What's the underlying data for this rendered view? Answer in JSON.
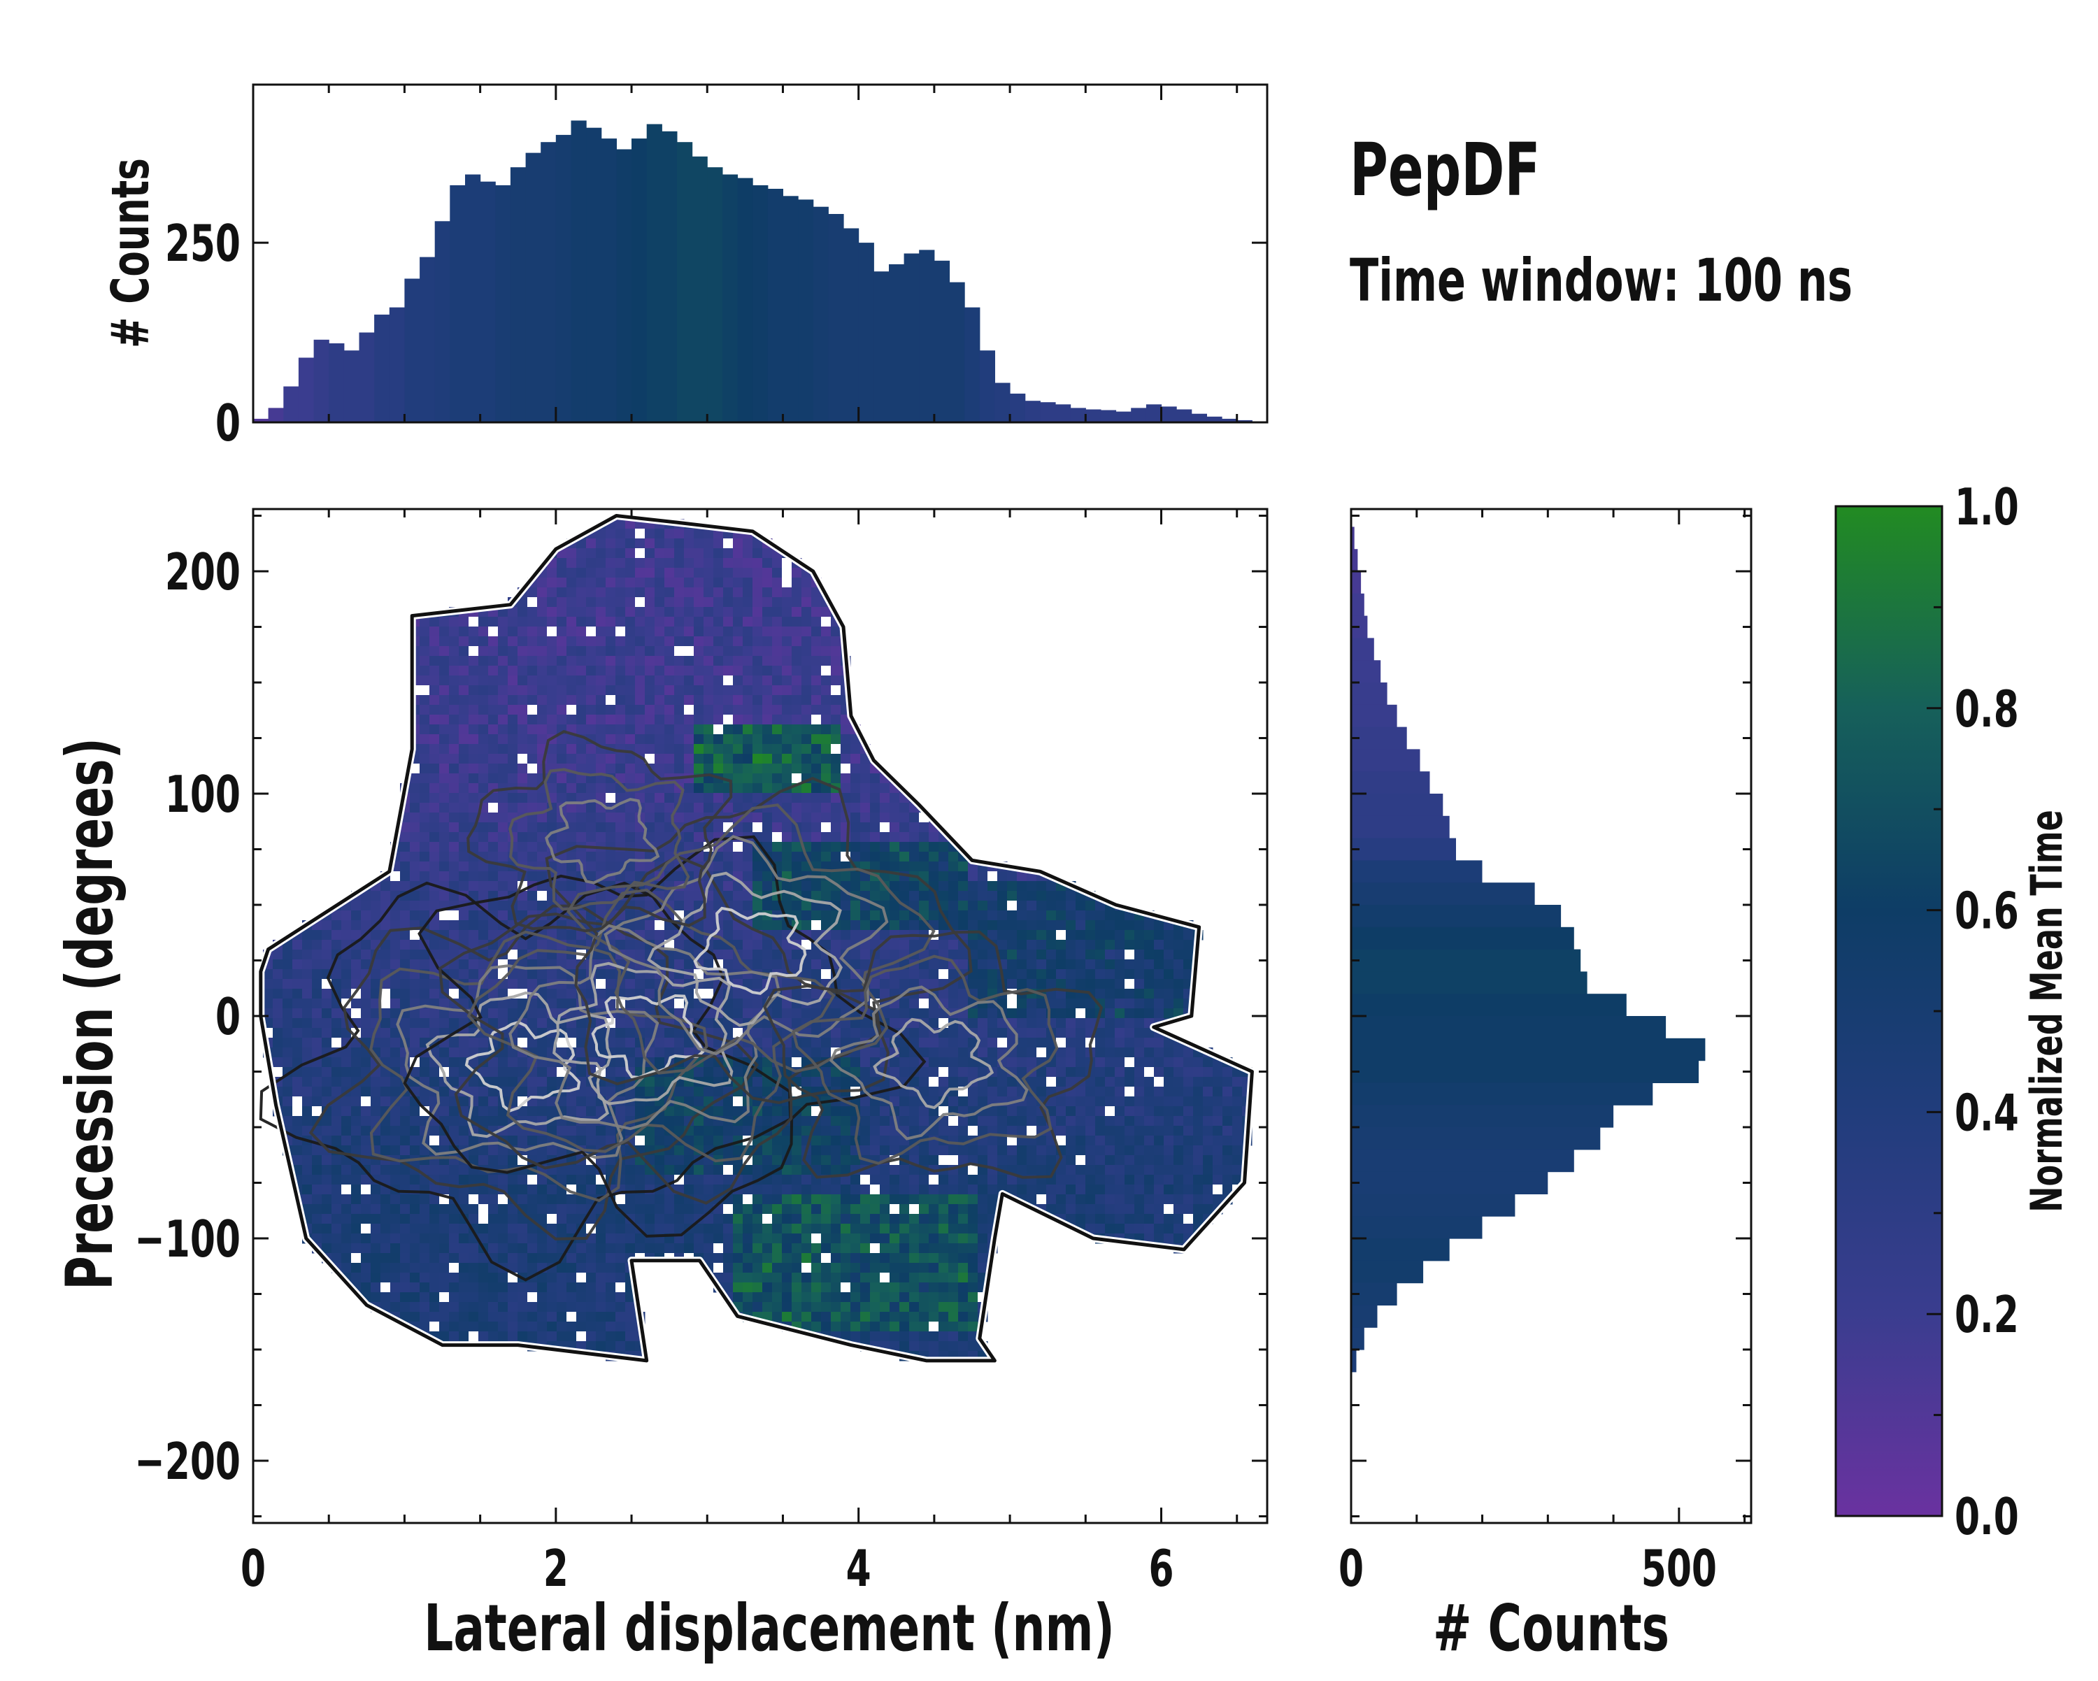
{
  "figure": {
    "title": "PepDF",
    "subtitle": "Time window: 100 ns"
  },
  "chart_data": [
    {
      "id": "top-histogram",
      "type": "bar",
      "xlabel": "",
      "ylabel": "# Counts",
      "xlim": [
        0,
        6.7
      ],
      "ylim": [
        0,
        470
      ],
      "yticks": [
        0,
        250
      ],
      "x": [
        0.05,
        0.15,
        0.25,
        0.35,
        0.45,
        0.55,
        0.65,
        0.75,
        0.85,
        0.95,
        1.05,
        1.15,
        1.25,
        1.35,
        1.45,
        1.55,
        1.65,
        1.75,
        1.85,
        1.95,
        2.05,
        2.15,
        2.25,
        2.35,
        2.45,
        2.55,
        2.65,
        2.75,
        2.85,
        2.95,
        3.05,
        3.15,
        3.25,
        3.35,
        3.45,
        3.55,
        3.65,
        3.75,
        3.85,
        3.95,
        4.05,
        4.15,
        4.25,
        4.35,
        4.45,
        4.55,
        4.65,
        4.75,
        4.85,
        4.95,
        5.05,
        5.15,
        5.25,
        5.35,
        5.45,
        5.55,
        5.65,
        5.75,
        5.85,
        5.95,
        6.05,
        6.15,
        6.25,
        6.35,
        6.45,
        6.55
      ],
      "values": [
        5,
        20,
        50,
        90,
        115,
        110,
        100,
        125,
        150,
        160,
        200,
        230,
        280,
        330,
        345,
        335,
        330,
        355,
        375,
        390,
        400,
        420,
        410,
        395,
        380,
        395,
        415,
        405,
        390,
        370,
        355,
        345,
        340,
        330,
        325,
        315,
        310,
        300,
        290,
        270,
        250,
        210,
        220,
        235,
        240,
        225,
        195,
        160,
        100,
        55,
        40,
        30,
        28,
        25,
        20,
        18,
        17,
        15,
        20,
        25,
        22,
        18,
        12,
        8,
        5,
        3
      ],
      "color_values": [
        0.1,
        0.15,
        0.2,
        0.2,
        0.25,
        0.3,
        0.3,
        0.3,
        0.35,
        0.35,
        0.4,
        0.4,
        0.42,
        0.45,
        0.45,
        0.45,
        0.48,
        0.5,
        0.5,
        0.5,
        0.52,
        0.55,
        0.55,
        0.55,
        0.58,
        0.6,
        0.62,
        0.62,
        0.65,
        0.65,
        0.65,
        0.62,
        0.6,
        0.58,
        0.55,
        0.55,
        0.55,
        0.52,
        0.5,
        0.5,
        0.5,
        0.5,
        0.5,
        0.5,
        0.5,
        0.5,
        0.5,
        0.45,
        0.4,
        0.38,
        0.35,
        0.32,
        0.3,
        0.3,
        0.3,
        0.3,
        0.3,
        0.3,
        0.3,
        0.3,
        0.3,
        0.3,
        0.3,
        0.3,
        0.3,
        0.3
      ]
    },
    {
      "id": "main-2d-histogram",
      "type": "heatmap",
      "xlabel": "Lateral displacement (nm)",
      "ylabel": "Precession (degrees)",
      "xlim": [
        0,
        6.7
      ],
      "ylim": [
        -228,
        228
      ],
      "xticks": [
        0,
        2,
        4,
        6
      ],
      "yticks": [
        -200,
        -100,
        0,
        100,
        200
      ],
      "region_outline": [
        [
          0.1,
          30
        ],
        [
          0.9,
          65
        ],
        [
          1.05,
          120
        ],
        [
          1.05,
          180
        ],
        [
          1.7,
          185
        ],
        [
          2.0,
          210
        ],
        [
          2.4,
          225
        ],
        [
          2.8,
          222
        ],
        [
          3.3,
          218
        ],
        [
          3.7,
          200
        ],
        [
          3.9,
          175
        ],
        [
          3.95,
          135
        ],
        [
          4.1,
          115
        ],
        [
          4.4,
          95
        ],
        [
          4.75,
          70
        ],
        [
          5.2,
          65
        ],
        [
          5.7,
          50
        ],
        [
          6.25,
          40
        ],
        [
          6.2,
          0
        ],
        [
          5.95,
          -5
        ],
        [
          6.6,
          -25
        ],
        [
          6.55,
          -75
        ],
        [
          6.15,
          -105
        ],
        [
          5.55,
          -100
        ],
        [
          4.95,
          -80
        ],
        [
          4.9,
          -100
        ],
        [
          4.8,
          -145
        ],
        [
          4.9,
          -155
        ],
        [
          4.45,
          -155
        ],
        [
          3.95,
          -148
        ],
        [
          3.2,
          -135
        ],
        [
          2.95,
          -110
        ],
        [
          2.5,
          -110
        ],
        [
          2.6,
          -155
        ],
        [
          1.75,
          -148
        ],
        [
          1.25,
          -148
        ],
        [
          0.75,
          -130
        ],
        [
          0.35,
          -100
        ],
        [
          0.15,
          -40
        ],
        [
          0.05,
          0
        ],
        [
          0.05,
          20
        ]
      ],
      "high_color_regions": [
        {
          "x": [
            2.9,
            3.9
          ],
          "y": [
            100,
            130
          ],
          "value": 0.85
        },
        {
          "x": [
            3.3,
            4.7
          ],
          "y": [
            40,
            80
          ],
          "value": 0.7
        },
        {
          "x": [
            4.7,
            6.3
          ],
          "y": [
            0,
            60
          ],
          "value": 0.6
        },
        {
          "x": [
            3.2,
            4.8
          ],
          "y": [
            -140,
            -80
          ],
          "value": 0.8
        },
        {
          "x": [
            2.5,
            4.0
          ],
          "y": [
            -70,
            -20
          ],
          "value": 0.65
        }
      ],
      "density_peaks": [
        {
          "x": 1.8,
          "y": -22,
          "level": 1.0
        },
        {
          "x": 2.6,
          "y": -8,
          "level": 0.95
        },
        {
          "x": 3.3,
          "y": 30,
          "level": 0.8
        },
        {
          "x": 4.5,
          "y": -20,
          "level": 0.6
        },
        {
          "x": 2.3,
          "y": 80,
          "level": 0.55
        }
      ]
    },
    {
      "id": "right-histogram",
      "type": "bar",
      "orientation": "horizontal",
      "xlabel": "# Counts",
      "ylabel": "",
      "xlim": [
        0,
        610
      ],
      "ylim": [
        -228,
        228
      ],
      "xticks": [
        0,
        500
      ],
      "y": [
        215,
        205,
        195,
        185,
        175,
        165,
        155,
        145,
        135,
        125,
        115,
        105,
        95,
        85,
        75,
        65,
        55,
        45,
        35,
        25,
        15,
        5,
        -5,
        -15,
        -25,
        -35,
        -45,
        -55,
        -65,
        -75,
        -85,
        -95,
        -105,
        -115,
        -125,
        -135,
        -145,
        -155
      ],
      "values": [
        5,
        10,
        15,
        20,
        25,
        35,
        45,
        55,
        70,
        85,
        105,
        120,
        140,
        150,
        160,
        200,
        280,
        320,
        340,
        350,
        360,
        420,
        480,
        540,
        530,
        460,
        400,
        380,
        340,
        300,
        250,
        200,
        150,
        110,
        70,
        40,
        20,
        8
      ],
      "color_values": [
        0.15,
        0.15,
        0.15,
        0.18,
        0.18,
        0.2,
        0.2,
        0.22,
        0.22,
        0.25,
        0.25,
        0.28,
        0.3,
        0.3,
        0.35,
        0.45,
        0.5,
        0.55,
        0.6,
        0.62,
        0.62,
        0.6,
        0.58,
        0.58,
        0.58,
        0.55,
        0.52,
        0.5,
        0.48,
        0.48,
        0.5,
        0.52,
        0.55,
        0.55,
        0.52,
        0.5,
        0.48,
        0.45
      ]
    },
    {
      "id": "colorbar",
      "type": "heatmap",
      "label": "Normalized Mean Time",
      "range": [
        0.0,
        1.0
      ],
      "ticks": [
        "0.0",
        "0.2",
        "0.4",
        "0.6",
        "0.8",
        "1.0"
      ],
      "colormap": [
        "#6a32a0",
        "#3a3d8f",
        "#213d7c",
        "#0e3d66",
        "#16605a",
        "#228b22"
      ]
    }
  ]
}
